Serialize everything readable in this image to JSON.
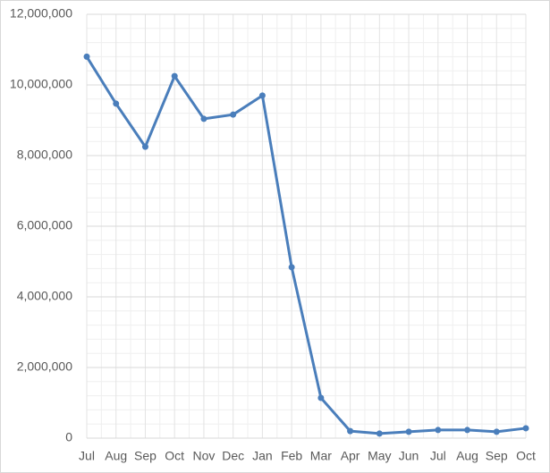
{
  "chart_data": {
    "type": "line",
    "categories": [
      "Jul",
      "Aug",
      "Sep",
      "Oct",
      "Nov",
      "Dec",
      "Jan",
      "Feb",
      "Mar",
      "Apr",
      "May",
      "Jun",
      "Jul",
      "Aug",
      "Sep",
      "Oct"
    ],
    "series": [
      {
        "color": "#4a7ebb",
        "values": [
          10800000,
          9470000,
          8250000,
          10250000,
          9040000,
          9160000,
          9700000,
          4840000,
          1140000,
          200000,
          130000,
          180000,
          230000,
          230000,
          180000,
          280000
        ]
      }
    ],
    "ylim": [
      0,
      12000000
    ],
    "yticks": [
      0,
      {
        "value": 2000000,
        "label": "2,000,000"
      },
      {
        "value": 4000000,
        "label": "4,000,000"
      },
      {
        "value": 6000000,
        "label": "6,000,000"
      },
      {
        "value": 8000000,
        "label": "8,000,000"
      },
      {
        "value": 10000000,
        "label": "10,000,000"
      },
      {
        "value": 12000000,
        "label": "12,000,000"
      }
    ],
    "grid": true,
    "minor_grid": true,
    "markers": true
  }
}
